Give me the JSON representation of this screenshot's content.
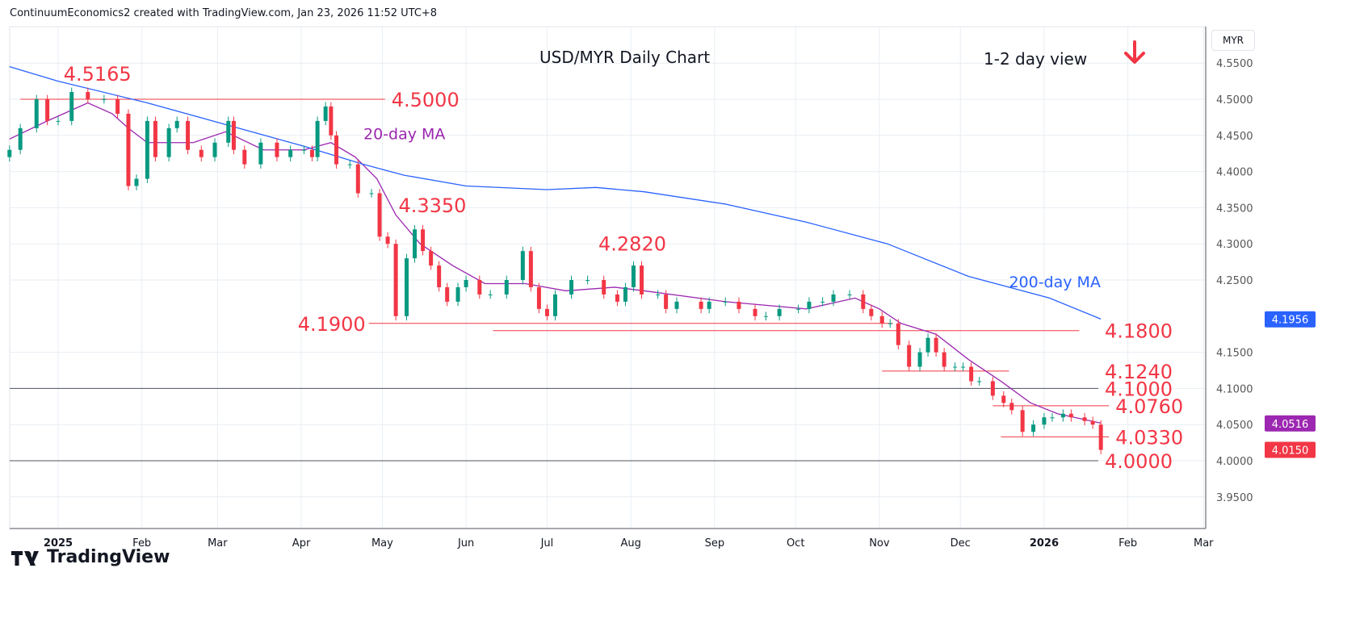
{
  "header": {
    "attribution": "ContinuumEconomics2 created with TradingView.com, Jan 23, 2026 11:52 UTC+8"
  },
  "currency": "MYR",
  "logo": "TradingView",
  "colors": {
    "up": "#089981",
    "down": "#f23645",
    "ma20": "#9c27b0",
    "ma200": "#2962ff",
    "level": "#f23645",
    "grid": "#e8eef4"
  },
  "chart_data": {
    "type": "candlestick",
    "title": "USD/MYR Daily Chart",
    "view": "1-2 day view",
    "view_icon": "arrow-down-icon",
    "ylim": [
      3.93,
      4.57
    ],
    "y_ticks": [
      "4.5500",
      "4.5000",
      "4.4500",
      "4.4000",
      "4.3500",
      "4.3000",
      "4.2500",
      "4.1500",
      "4.1000",
      "4.0500",
      "4.0000",
      "3.9500"
    ],
    "y_tick_values": [
      4.55,
      4.5,
      4.45,
      4.4,
      4.35,
      4.3,
      4.25,
      4.15,
      4.1,
      4.05,
      4.0,
      3.95
    ],
    "x_ticks": [
      {
        "label": "2025",
        "date": "2025-01-01",
        "bold": true
      },
      {
        "label": "Feb",
        "date": "2025-02-01"
      },
      {
        "label": "Mar",
        "date": "2025-03-01"
      },
      {
        "label": "Apr",
        "date": "2025-04-01"
      },
      {
        "label": "May",
        "date": "2025-05-01"
      },
      {
        "label": "Jun",
        "date": "2025-06-01"
      },
      {
        "label": "Jul",
        "date": "2025-07-01"
      },
      {
        "label": "Aug",
        "date": "2025-08-01"
      },
      {
        "label": "Sep",
        "date": "2025-09-01"
      },
      {
        "label": "Oct",
        "date": "2025-10-01"
      },
      {
        "label": "Nov",
        "date": "2025-11-01"
      },
      {
        "label": "Dec",
        "date": "2025-12-01"
      },
      {
        "label": "2026",
        "date": "2026-01-01",
        "bold": true
      },
      {
        "label": "Feb",
        "date": "2026-02-01"
      },
      {
        "label": "Mar",
        "date": "2026-03-01"
      }
    ],
    "closes": [
      [
        "2024-12-14",
        4.43
      ],
      [
        "2024-12-18",
        4.46
      ],
      [
        "2024-12-24",
        4.5
      ],
      [
        "2024-12-28",
        4.47
      ],
      [
        "2025-01-01",
        4.47
      ],
      [
        "2025-01-06",
        4.51
      ],
      [
        "2025-01-12",
        4.5
      ],
      [
        "2025-01-18",
        4.5
      ],
      [
        "2025-01-23",
        4.48
      ],
      [
        "2025-01-27",
        4.38
      ],
      [
        "2025-01-30",
        4.39
      ],
      [
        "2025-02-03",
        4.47
      ],
      [
        "2025-02-06",
        4.42
      ],
      [
        "2025-02-11",
        4.46
      ],
      [
        "2025-02-14",
        4.47
      ],
      [
        "2025-02-18",
        4.43
      ],
      [
        "2025-02-23",
        4.42
      ],
      [
        "2025-02-28",
        4.44
      ],
      [
        "2025-03-05",
        4.47
      ],
      [
        "2025-03-07",
        4.43
      ],
      [
        "2025-03-11",
        4.41
      ],
      [
        "2025-03-17",
        4.44
      ],
      [
        "2025-03-23",
        4.42
      ],
      [
        "2025-03-28",
        4.43
      ],
      [
        "2025-04-02",
        4.43
      ],
      [
        "2025-04-05",
        4.42
      ],
      [
        "2025-04-07",
        4.47
      ],
      [
        "2025-04-10",
        4.49
      ],
      [
        "2025-04-12",
        4.45
      ],
      [
        "2025-04-14",
        4.41
      ],
      [
        "2025-04-19",
        4.41
      ],
      [
        "2025-04-22",
        4.37
      ],
      [
        "2025-04-27",
        4.37
      ],
      [
        "2025-04-30",
        4.31
      ],
      [
        "2025-05-03",
        4.3
      ],
      [
        "2025-05-06",
        4.2
      ],
      [
        "2025-05-10",
        4.28
      ],
      [
        "2025-05-13",
        4.32
      ],
      [
        "2025-05-16",
        4.29
      ],
      [
        "2025-05-19",
        4.27
      ],
      [
        "2025-05-22",
        4.24
      ],
      [
        "2025-05-25",
        4.22
      ],
      [
        "2025-05-29",
        4.24
      ],
      [
        "2025-06-01",
        4.25
      ],
      [
        "2025-06-06",
        4.23
      ],
      [
        "2025-06-10",
        4.23
      ],
      [
        "2025-06-16",
        4.25
      ],
      [
        "2025-06-22",
        4.29
      ],
      [
        "2025-06-25",
        4.24
      ],
      [
        "2025-06-28",
        4.21
      ],
      [
        "2025-07-01",
        4.2
      ],
      [
        "2025-07-04",
        4.23
      ],
      [
        "2025-07-10",
        4.25
      ],
      [
        "2025-07-16",
        4.25
      ],
      [
        "2025-07-22",
        4.23
      ],
      [
        "2025-07-27",
        4.22
      ],
      [
        "2025-07-30",
        4.24
      ],
      [
        "2025-08-02",
        4.27
      ],
      [
        "2025-08-05",
        4.23
      ],
      [
        "2025-08-11",
        4.23
      ],
      [
        "2025-08-14",
        4.21
      ],
      [
        "2025-08-18",
        4.22
      ],
      [
        "2025-08-27",
        4.21
      ],
      [
        "2025-08-30",
        4.22
      ],
      [
        "2025-09-05",
        4.22
      ],
      [
        "2025-09-10",
        4.21
      ],
      [
        "2025-09-16",
        4.2
      ],
      [
        "2025-09-20",
        4.2
      ],
      [
        "2025-09-25",
        4.21
      ],
      [
        "2025-10-02",
        4.21
      ],
      [
        "2025-10-06",
        4.22
      ],
      [
        "2025-10-11",
        4.22
      ],
      [
        "2025-10-15",
        4.23
      ],
      [
        "2025-10-21",
        4.23
      ],
      [
        "2025-10-26",
        4.21
      ],
      [
        "2025-10-29",
        4.2
      ],
      [
        "2025-11-02",
        4.19
      ],
      [
        "2025-11-05",
        4.19
      ],
      [
        "2025-11-08",
        4.16
      ],
      [
        "2025-11-12",
        4.13
      ],
      [
        "2025-11-16",
        4.15
      ],
      [
        "2025-11-19",
        4.17
      ],
      [
        "2025-11-22",
        4.15
      ],
      [
        "2025-11-25",
        4.13
      ],
      [
        "2025-11-29",
        4.13
      ],
      [
        "2025-12-02",
        4.13
      ],
      [
        "2025-12-05",
        4.11
      ],
      [
        "2025-12-08",
        4.11
      ],
      [
        "2025-12-13",
        4.09
      ],
      [
        "2025-12-17",
        4.08
      ],
      [
        "2025-12-20",
        4.07
      ],
      [
        "2025-12-24",
        4.04
      ],
      [
        "2025-12-28",
        4.05
      ],
      [
        "2026-01-01",
        4.06
      ],
      [
        "2026-01-04",
        4.06
      ],
      [
        "2026-01-08",
        4.065
      ],
      [
        "2026-01-11",
        4.06
      ],
      [
        "2026-01-16",
        4.055
      ],
      [
        "2026-01-19",
        4.05
      ],
      [
        "2026-01-22",
        4.015
      ]
    ],
    "series": [
      {
        "name": "20-day MA",
        "color": "#9c27b0",
        "points": [
          [
            "2024-12-14",
            4.445
          ],
          [
            "2024-12-28",
            4.47
          ],
          [
            "2025-01-12",
            4.495
          ],
          [
            "2025-01-21",
            4.48
          ],
          [
            "2025-01-27",
            4.46
          ],
          [
            "2025-02-03",
            4.44
          ],
          [
            "2025-02-20",
            4.44
          ],
          [
            "2025-03-04",
            4.455
          ],
          [
            "2025-03-18",
            4.43
          ],
          [
            "2025-04-02",
            4.43
          ],
          [
            "2025-04-12",
            4.44
          ],
          [
            "2025-04-21",
            4.42
          ],
          [
            "2025-04-29",
            4.39
          ],
          [
            "2025-05-06",
            4.34
          ],
          [
            "2025-05-15",
            4.3
          ],
          [
            "2025-05-27",
            4.27
          ],
          [
            "2025-06-08",
            4.245
          ],
          [
            "2025-06-23",
            4.245
          ],
          [
            "2025-07-08",
            4.235
          ],
          [
            "2025-07-26",
            4.24
          ],
          [
            "2025-08-06",
            4.235
          ],
          [
            "2025-09-05",
            4.22
          ],
          [
            "2025-10-05",
            4.21
          ],
          [
            "2025-10-23",
            4.225
          ],
          [
            "2025-11-01",
            4.21
          ],
          [
            "2025-11-09",
            4.19
          ],
          [
            "2025-11-22",
            4.175
          ],
          [
            "2025-12-04",
            4.14
          ],
          [
            "2025-12-16",
            4.11
          ],
          [
            "2025-12-27",
            4.08
          ],
          [
            "2026-01-06",
            4.065
          ],
          [
            "2026-01-22",
            4.052
          ]
        ]
      },
      {
        "name": "200-day MA",
        "color": "#2962ff",
        "points": [
          [
            "2024-12-14",
            4.545
          ],
          [
            "2025-01-01",
            4.525
          ],
          [
            "2025-02-03",
            4.495
          ],
          [
            "2025-03-04",
            4.465
          ],
          [
            "2025-04-02",
            4.435
          ],
          [
            "2025-04-24",
            4.41
          ],
          [
            "2025-05-09",
            4.395
          ],
          [
            "2025-06-01",
            4.38
          ],
          [
            "2025-07-01",
            4.375
          ],
          [
            "2025-07-19",
            4.378
          ],
          [
            "2025-08-06",
            4.372
          ],
          [
            "2025-09-05",
            4.355
          ],
          [
            "2025-10-05",
            4.33
          ],
          [
            "2025-11-04",
            4.3
          ],
          [
            "2025-12-04",
            4.255
          ],
          [
            "2026-01-03",
            4.225
          ],
          [
            "2026-01-22",
            4.196
          ]
        ]
      }
    ],
    "levels": [
      {
        "label": "4.5000",
        "value": 4.5,
        "from": "2024-12-18",
        "to": "2025-05-02"
      },
      {
        "label": "4.1900",
        "value": 4.19,
        "from": "2025-04-26",
        "to": "2025-11-06"
      },
      {
        "label": "4.1800",
        "value": 4.18,
        "from": "2025-06-11",
        "to": "2026-01-14"
      },
      {
        "label": "4.1240",
        "value": 4.124,
        "from": "2025-11-02",
        "to": "2025-12-19"
      },
      {
        "label": "4.1000",
        "value": 4.1,
        "full": true
      },
      {
        "label": "4.0760",
        "value": 4.076,
        "from": "2025-12-13",
        "to": "2026-01-25"
      },
      {
        "label": "4.0330",
        "value": 4.033,
        "from": "2025-12-16",
        "to": "2026-01-25"
      },
      {
        "label": "4.0000",
        "value": 4.0,
        "full": true
      }
    ],
    "annotations": [
      {
        "text": "4.5165",
        "value": 4.5165,
        "date": "2025-01-03"
      },
      {
        "text": "4.3350",
        "value": 4.335,
        "date": "2025-05-07"
      },
      {
        "text": "4.2820",
        "value": 4.282,
        "date": "2025-07-20"
      },
      {
        "text": "20-day MA",
        "value": 4.445,
        "date": "2025-04-24",
        "color": "#9c27b0"
      },
      {
        "text": "200-day MA",
        "value": 4.24,
        "date": "2025-12-19",
        "color": "#2962ff"
      }
    ],
    "price_badges": [
      {
        "text": "4.1956",
        "value": 4.1956,
        "color": "#2962ff"
      },
      {
        "text": "4.0516",
        "value": 4.0516,
        "color": "#9c27b0"
      },
      {
        "text": "4.0150",
        "value": 4.015,
        "color": "#f23645"
      }
    ]
  }
}
